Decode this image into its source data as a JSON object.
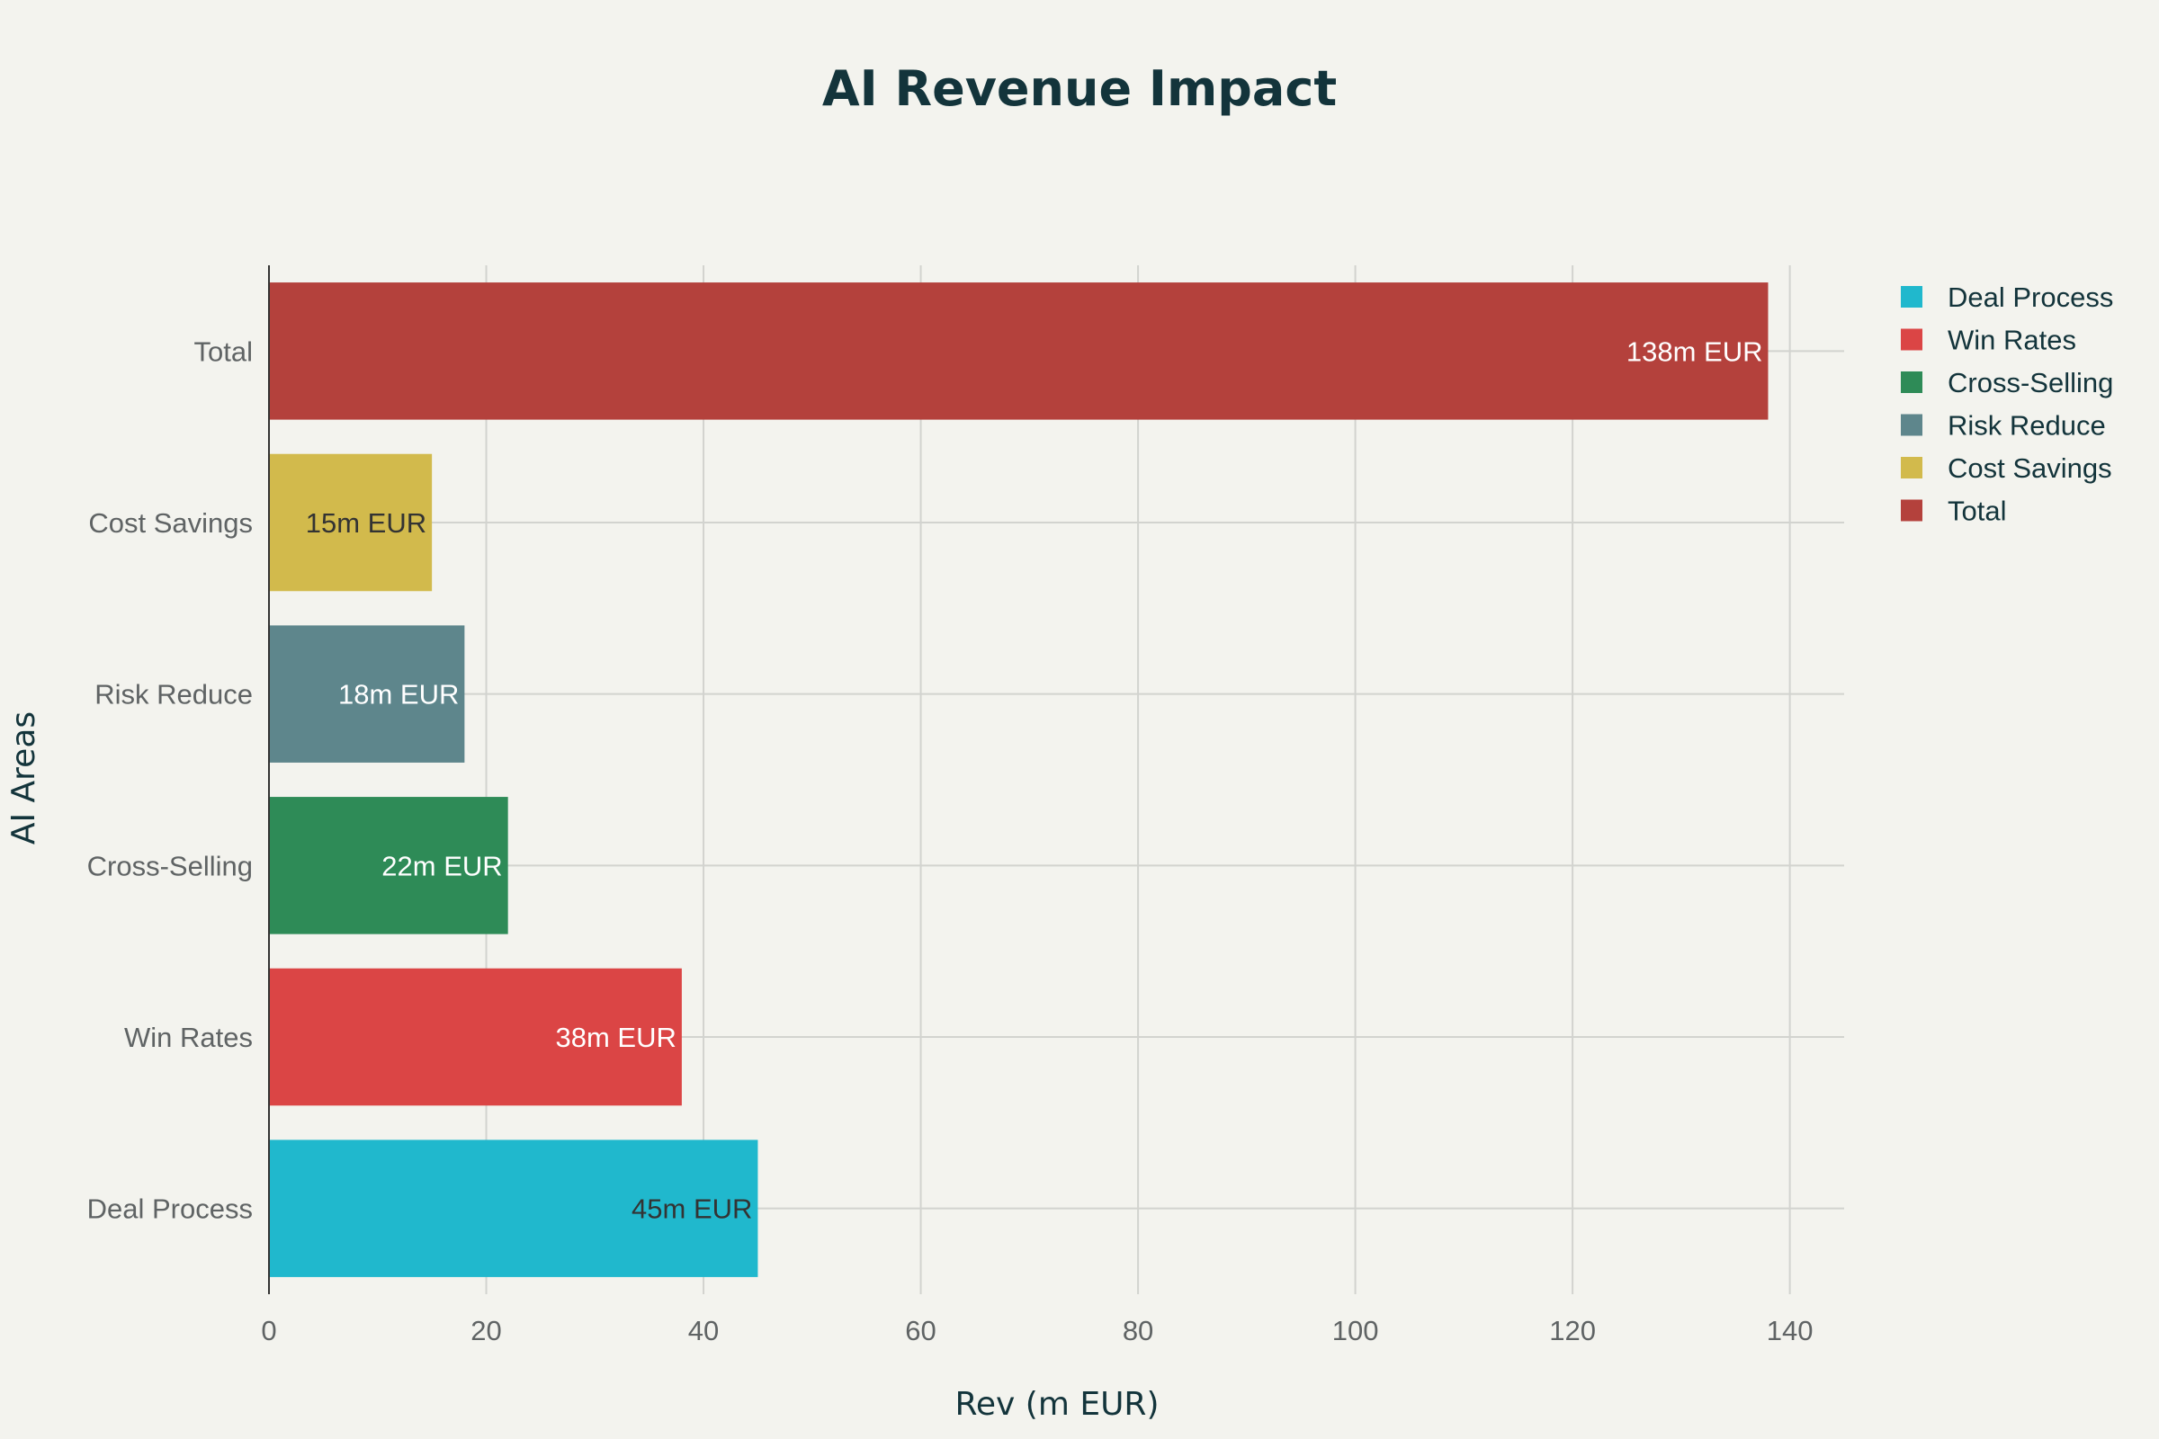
{
  "chart_data": {
    "type": "bar",
    "orientation": "horizontal",
    "title": "AI Revenue Impact",
    "xlabel": "Rev (m EUR)",
    "ylabel": "AI Areas",
    "xlim": [
      0,
      145
    ],
    "x_ticks": [
      0,
      20,
      40,
      60,
      80,
      100,
      120,
      140
    ],
    "grid": true,
    "legend_position": "top-right",
    "categories": [
      "Deal Process",
      "Win Rates",
      "Cross-Selling",
      "Risk Reduce",
      "Cost Savings",
      "Total"
    ],
    "values": [
      45,
      38,
      22,
      18,
      15,
      138
    ],
    "value_labels": [
      "45m EUR",
      "38m EUR",
      "22m EUR",
      "18m EUR",
      "15m EUR",
      "138m EUR"
    ],
    "colors": [
      "#20b8cd",
      "#db4545",
      "#2e8b57",
      "#5e868c",
      "#d2ba4c",
      "#b4413c"
    ],
    "label_colors": [
      "#333333",
      "#ffffff",
      "#ffffff",
      "#ffffff",
      "#333333",
      "#ffffff"
    ],
    "legend": [
      "Deal Process",
      "Win Rates",
      "Cross-Selling",
      "Risk Reduce",
      "Cost Savings",
      "Total"
    ]
  }
}
